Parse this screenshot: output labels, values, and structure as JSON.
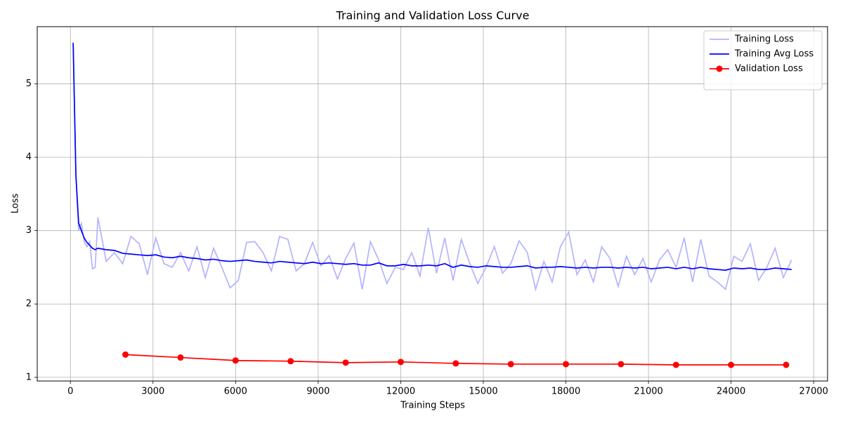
{
  "chart_data": {
    "type": "line",
    "title": "Training and Validation Loss Curve",
    "x_label": "Training Steps",
    "y_label": "Loss",
    "xlim": [
      -1205,
      27505
    ],
    "ylim": [
      0.95,
      5.78
    ],
    "xticks": [
      0,
      3000,
      6000,
      9000,
      12000,
      15000,
      18000,
      21000,
      24000,
      27000
    ],
    "yticks": [
      1,
      2,
      3,
      4,
      5
    ],
    "grid": true,
    "legend": "upper right",
    "series": [
      {
        "name": "Training Loss",
        "color": "#b3b3ff",
        "marker": false,
        "x": [
          100,
          200,
          300,
          400,
          500,
          600,
          700,
          800,
          900,
          1000,
          1300,
          1600,
          1900,
          2200,
          2500,
          2800,
          3100,
          3400,
          3700,
          4000,
          4300,
          4600,
          4900,
          5200,
          5500,
          5800,
          6100,
          6400,
          6700,
          7000,
          7300,
          7600,
          7900,
          8200,
          8500,
          8800,
          9100,
          9400,
          9700,
          10000,
          10300,
          10600,
          10900,
          11200,
          11500,
          11800,
          12100,
          12400,
          12700,
          13000,
          13300,
          13600,
          13900,
          14200,
          14500,
          14800,
          15100,
          15400,
          15700,
          16000,
          16300,
          16600,
          16900,
          17200,
          17500,
          17800,
          18100,
          18400,
          18700,
          19000,
          19300,
          19600,
          19900,
          20200,
          20500,
          20800,
          21100,
          21400,
          21700,
          22000,
          22300,
          22600,
          22900,
          23200,
          23500,
          23800,
          24100,
          24400,
          24700,
          25000,
          25300,
          25600,
          25900,
          26200
        ],
        "values": [
          5.56,
          3.75,
          3.0,
          3.1,
          2.85,
          2.78,
          2.85,
          2.48,
          2.5,
          3.18,
          2.58,
          2.7,
          2.55,
          2.92,
          2.82,
          2.4,
          2.9,
          2.55,
          2.5,
          2.7,
          2.45,
          2.78,
          2.36,
          2.76,
          2.5,
          2.22,
          2.32,
          2.84,
          2.85,
          2.7,
          2.45,
          2.92,
          2.88,
          2.45,
          2.55,
          2.84,
          2.52,
          2.66,
          2.34,
          2.62,
          2.83,
          2.2,
          2.85,
          2.6,
          2.28,
          2.5,
          2.47,
          2.7,
          2.38,
          3.04,
          2.42,
          2.9,
          2.32,
          2.88,
          2.56,
          2.28,
          2.5,
          2.78,
          2.42,
          2.55,
          2.86,
          2.7,
          2.2,
          2.58,
          2.3,
          2.78,
          2.98,
          2.4,
          2.6,
          2.3,
          2.78,
          2.62,
          2.24,
          2.65,
          2.4,
          2.62,
          2.3,
          2.6,
          2.74,
          2.5,
          2.9,
          2.3,
          2.88,
          2.38,
          2.3,
          2.2,
          2.65,
          2.58,
          2.82,
          2.32,
          2.5,
          2.76,
          2.36,
          2.6
        ]
      },
      {
        "name": "Training Avg Loss",
        "color": "#0000ff",
        "marker": false,
        "x": [
          100,
          200,
          300,
          400,
          500,
          600,
          700,
          800,
          900,
          1000,
          1300,
          1600,
          1900,
          2200,
          2500,
          2800,
          3100,
          3400,
          3700,
          4000,
          4300,
          4600,
          4900,
          5200,
          5500,
          5800,
          6100,
          6400,
          6700,
          7000,
          7300,
          7600,
          7900,
          8200,
          8500,
          8800,
          9100,
          9400,
          9700,
          10000,
          10300,
          10600,
          10900,
          11200,
          11500,
          11800,
          12100,
          12400,
          12700,
          13000,
          13300,
          13600,
          13900,
          14200,
          14500,
          14800,
          15100,
          15400,
          15700,
          16000,
          16300,
          16600,
          16900,
          17200,
          17500,
          17800,
          18100,
          18400,
          18700,
          19000,
          19300,
          19600,
          19900,
          20200,
          20500,
          20800,
          21100,
          21400,
          21700,
          22000,
          22300,
          22600,
          22900,
          23200,
          23500,
          23800,
          24100,
          24400,
          24700,
          25000,
          25300,
          25600,
          25900,
          26200
        ],
        "values": [
          5.56,
          3.75,
          3.1,
          3.0,
          2.9,
          2.84,
          2.8,
          2.76,
          2.74,
          2.76,
          2.74,
          2.73,
          2.69,
          2.68,
          2.67,
          2.66,
          2.67,
          2.64,
          2.63,
          2.65,
          2.63,
          2.62,
          2.6,
          2.61,
          2.59,
          2.58,
          2.59,
          2.6,
          2.58,
          2.57,
          2.56,
          2.58,
          2.57,
          2.56,
          2.55,
          2.57,
          2.55,
          2.56,
          2.55,
          2.54,
          2.55,
          2.53,
          2.53,
          2.56,
          2.52,
          2.52,
          2.54,
          2.52,
          2.52,
          2.53,
          2.52,
          2.55,
          2.5,
          2.53,
          2.51,
          2.5,
          2.52,
          2.51,
          2.5,
          2.5,
          2.51,
          2.52,
          2.49,
          2.5,
          2.5,
          2.51,
          2.5,
          2.49,
          2.5,
          2.49,
          2.5,
          2.5,
          2.49,
          2.5,
          2.49,
          2.5,
          2.48,
          2.49,
          2.5,
          2.48,
          2.5,
          2.48,
          2.5,
          2.48,
          2.47,
          2.46,
          2.49,
          2.48,
          2.49,
          2.47,
          2.47,
          2.49,
          2.48,
          2.47
        ]
      },
      {
        "name": "Validation Loss",
        "color": "#ff0000",
        "marker": true,
        "x": [
          2000,
          4000,
          6000,
          8000,
          10000,
          12000,
          14000,
          16000,
          18000,
          20000,
          22000,
          24000,
          26000
        ],
        "values": [
          1.31,
          1.27,
          1.23,
          1.22,
          1.2,
          1.21,
          1.19,
          1.18,
          1.18,
          1.18,
          1.17,
          1.17,
          1.17
        ]
      }
    ]
  }
}
